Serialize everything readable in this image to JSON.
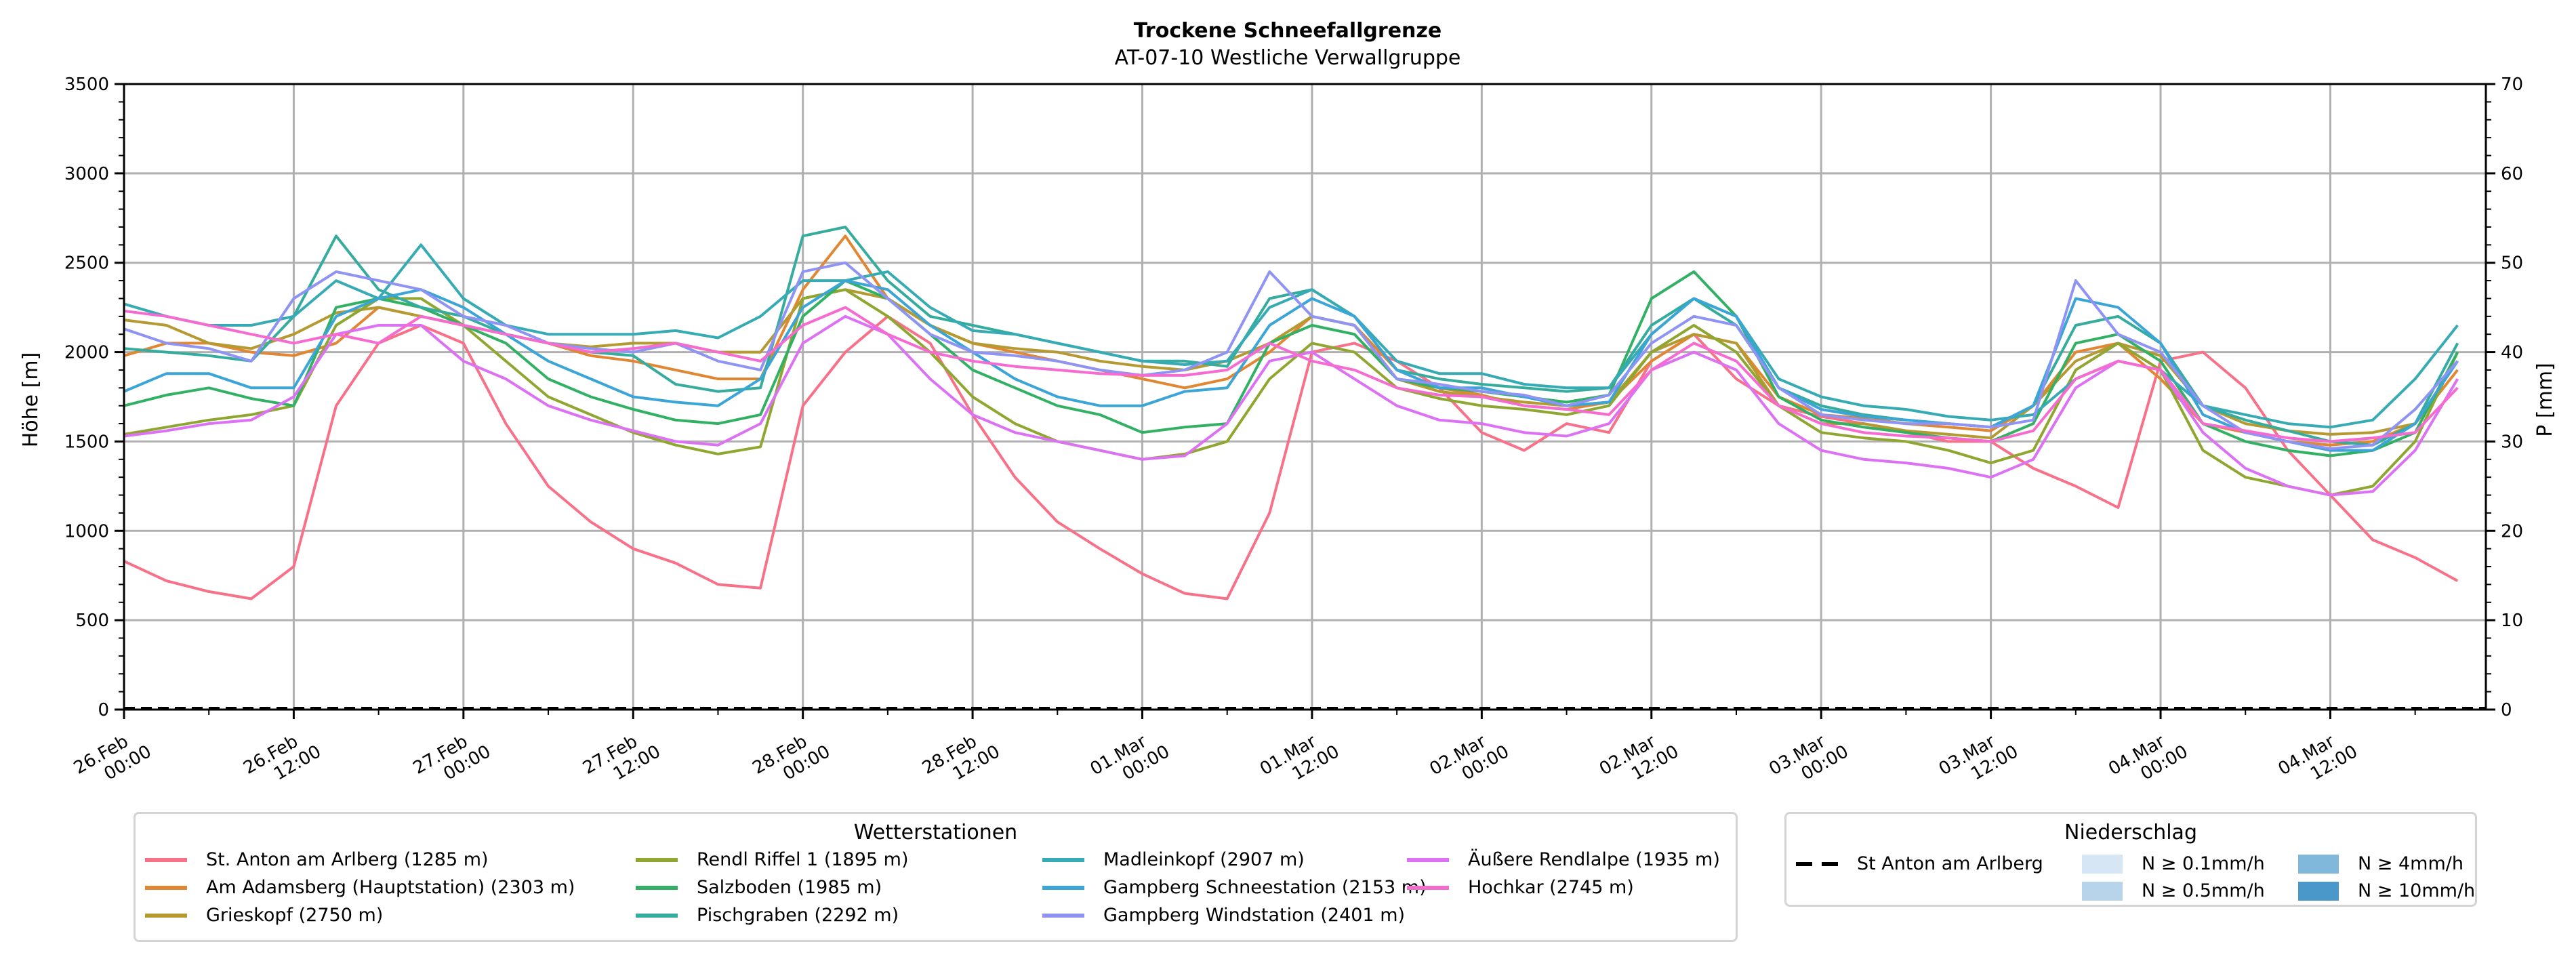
{
  "chart_data": {
    "type": "line",
    "title": "Trockene Schneefallgrenze",
    "subtitle": "AT-07-10 Westliche Verwallgruppe",
    "ylabel": "Höhe [m]",
    "ylabel_right": "P [mm]",
    "ylim": [
      0,
      3500
    ],
    "ylim_right": [
      0,
      70
    ],
    "yticks": [
      "0",
      "500",
      "1000",
      "1500",
      "2000",
      "2500",
      "3000",
      "3500"
    ],
    "yticks_right": [
      "0",
      "10",
      "20",
      "30",
      "40",
      "50",
      "60",
      "70"
    ],
    "x_unit": "hours since 26.Feb 00:00",
    "x_step_hours": 3,
    "xlim": [
      0,
      167
    ],
    "xticks": [
      {
        "line1": "26.Feb",
        "line2": "00:00"
      },
      {
        "line1": "26.Feb",
        "line2": "12:00"
      },
      {
        "line1": "27.Feb",
        "line2": "00:00"
      },
      {
        "line1": "27.Feb",
        "line2": "12:00"
      },
      {
        "line1": "28.Feb",
        "line2": "00:00"
      },
      {
        "line1": "28.Feb",
        "line2": "12:00"
      },
      {
        "line1": "01.Mar",
        "line2": "00:00"
      },
      {
        "line1": "01.Mar",
        "line2": "12:00"
      },
      {
        "line1": "02.Mar",
        "line2": "00:00"
      },
      {
        "line1": "02.Mar",
        "line2": "12:00"
      },
      {
        "line1": "03.Mar",
        "line2": "00:00"
      },
      {
        "line1": "03.Mar",
        "line2": "12:00"
      },
      {
        "line1": "04.Mar",
        "line2": "00:00"
      },
      {
        "line1": "04.Mar",
        "line2": "12:00"
      }
    ],
    "grid": true,
    "series": [
      {
        "name": "St. Anton am Arlberg (1285 m)",
        "color": "#f77189",
        "values": [
          830,
          720,
          660,
          620,
          800,
          1700,
          2050,
          2150,
          2050,
          1600,
          1250,
          1050,
          900,
          820,
          700,
          680,
          1700,
          2000,
          2200,
          2050,
          1650,
          1300,
          1050,
          900,
          760,
          650,
          620,
          1100,
          2000,
          2050,
          1950,
          1800,
          1550,
          1450,
          1600,
          1550,
          1950,
          2100,
          1850,
          1700,
          1640,
          1600,
          1550,
          1500,
          1500,
          1350,
          1250,
          1130,
          1950,
          2000,
          1800,
          1450,
          1200,
          950,
          850,
          720
        ]
      },
      {
        "name": "Am Adamsberg (Hauptstation) (2303 m)",
        "color": "#e18632",
        "values": [
          1980,
          2050,
          2050,
          2000,
          1980,
          2050,
          2250,
          2200,
          2150,
          2100,
          2050,
          1980,
          1950,
          1900,
          1850,
          1850,
          2350,
          2650,
          2300,
          2150,
          2050,
          2000,
          1950,
          1900,
          1850,
          1800,
          1850,
          2000,
          2200,
          2150,
          1900,
          1800,
          1760,
          1700,
          1680,
          1720,
          1950,
          2100,
          2050,
          1750,
          1650,
          1630,
          1600,
          1580,
          1560,
          1700,
          2000,
          2050,
          1850,
          1600,
          1550,
          1500,
          1480,
          1500,
          1600,
          1900
        ]
      },
      {
        "name": "Grieskopf (2750 m)",
        "color": "#b59a32",
        "values": [
          2180,
          2150,
          2050,
          2020,
          2100,
          2220,
          2250,
          2200,
          2150,
          2100,
          2050,
          2030,
          2050,
          2050,
          2000,
          2000,
          2300,
          2350,
          2300,
          2150,
          2050,
          2020,
          2000,
          1950,
          1920,
          1900,
          1950,
          2050,
          2200,
          2150,
          1850,
          1780,
          1750,
          1720,
          1700,
          1720,
          2000,
          2100,
          2050,
          1700,
          1600,
          1600,
          1560,
          1540,
          1520,
          1700,
          1950,
          2050,
          1980,
          1700,
          1600,
          1560,
          1540,
          1550,
          1600,
          1950
        ]
      },
      {
        "name": "Rendl Riffel 1 (1895 m)",
        "color": "#8fa631",
        "values": [
          1540,
          1580,
          1620,
          1650,
          1700,
          2150,
          2300,
          2300,
          2150,
          1950,
          1750,
          1650,
          1550,
          1480,
          1430,
          1470,
          2300,
          2350,
          2200,
          2000,
          1750,
          1600,
          1500,
          1450,
          1400,
          1430,
          1500,
          1850,
          2050,
          2000,
          1800,
          1740,
          1700,
          1680,
          1650,
          1700,
          2000,
          2150,
          2000,
          1700,
          1550,
          1520,
          1500,
          1450,
          1380,
          1450,
          1900,
          2050,
          1900,
          1450,
          1300,
          1250,
          1200,
          1250,
          1500,
          2000
        ]
      },
      {
        "name": "Salzboden (1985 m)",
        "color": "#32b165",
        "values": [
          1700,
          1760,
          1800,
          1740,
          1700,
          2250,
          2300,
          2250,
          2150,
          2050,
          1850,
          1750,
          1680,
          1620,
          1600,
          1650,
          2200,
          2400,
          2300,
          2100,
          1900,
          1800,
          1700,
          1650,
          1550,
          1580,
          1600,
          2050,
          2150,
          2100,
          1850,
          1800,
          1780,
          1750,
          1720,
          1760,
          2300,
          2450,
          2200,
          1750,
          1620,
          1580,
          1550,
          1520,
          1500,
          1600,
          2050,
          2100,
          1950,
          1600,
          1500,
          1450,
          1420,
          1450,
          1550,
          2000
        ]
      },
      {
        "name": "Pischgraben (2292 m)",
        "color": "#35ac9d",
        "values": [
          2020,
          2000,
          1980,
          1950,
          2200,
          2650,
          2350,
          2250,
          2200,
          2100,
          2050,
          2000,
          1980,
          1820,
          1780,
          1800,
          2650,
          2700,
          2400,
          2200,
          2150,
          2100,
          2050,
          2000,
          1950,
          1950,
          1920,
          2300,
          2350,
          2200,
          1900,
          1850,
          1820,
          1800,
          1780,
          1800,
          2150,
          2300,
          2150,
          1800,
          1700,
          1650,
          1620,
          1600,
          1580,
          1700,
          2150,
          2200,
          2050,
          1700,
          1620,
          1560,
          1500,
          1480,
          1600,
          2050
        ]
      },
      {
        "name": "Madleinkopf (2907 m)",
        "color": "#37abb4",
        "values": [
          2270,
          2200,
          2150,
          2150,
          2200,
          2400,
          2300,
          2600,
          2300,
          2150,
          2100,
          2100,
          2100,
          2120,
          2080,
          2200,
          2400,
          2400,
          2450,
          2250,
          2120,
          2100,
          2050,
          2000,
          1950,
          1930,
          1950,
          2250,
          2350,
          2200,
          1950,
          1880,
          1880,
          1820,
          1800,
          1800,
          2100,
          2300,
          2200,
          1850,
          1750,
          1700,
          1680,
          1640,
          1620,
          1650,
          1850,
          1950,
          1900,
          1700,
          1650,
          1600,
          1580,
          1620,
          1850,
          2150
        ]
      },
      {
        "name": "Gampberg Schneestation (2153 m)",
        "color": "#3aa5d6",
        "values": [
          1780,
          1880,
          1880,
          1800,
          1800,
          2200,
          2300,
          2350,
          2250,
          2100,
          1950,
          1850,
          1750,
          1720,
          1700,
          1850,
          2250,
          2400,
          2350,
          2150,
          2000,
          1850,
          1750,
          1700,
          1700,
          1780,
          1800,
          2150,
          2300,
          2200,
          1900,
          1800,
          1800,
          1750,
          1700,
          1720,
          2100,
          2300,
          2200,
          1800,
          1680,
          1640,
          1620,
          1600,
          1580,
          1700,
          2300,
          2250,
          2050,
          1650,
          1550,
          1500,
          1450,
          1450,
          1600,
          1950
        ]
      },
      {
        "name": "Gampberg Windstation (2401 m)",
        "color": "#8f93f4",
        "values": [
          2130,
          2050,
          2020,
          1950,
          2300,
          2450,
          2400,
          2350,
          2200,
          2150,
          2050,
          2020,
          2000,
          2050,
          1950,
          1900,
          2450,
          2500,
          2300,
          2100,
          2000,
          1980,
          1950,
          1900,
          1870,
          1900,
          2000,
          2450,
          2200,
          2150,
          1850,
          1820,
          1780,
          1760,
          1700,
          1760,
          2050,
          2200,
          2150,
          1800,
          1650,
          1620,
          1600,
          1600,
          1580,
          1620,
          2400,
          2100,
          2000,
          1700,
          1550,
          1500,
          1460,
          1480,
          1680,
          1950
        ]
      },
      {
        "name": "Äußere Rendlalpe (1935 m)",
        "color": "#dc71f3",
        "values": [
          1530,
          1560,
          1600,
          1620,
          1750,
          2100,
          2150,
          2150,
          1950,
          1850,
          1700,
          1620,
          1560,
          1500,
          1480,
          1600,
          2050,
          2200,
          2100,
          1850,
          1650,
          1550,
          1500,
          1450,
          1400,
          1420,
          1600,
          1950,
          2000,
          1850,
          1700,
          1620,
          1600,
          1550,
          1530,
          1600,
          1900,
          2000,
          1900,
          1600,
          1450,
          1400,
          1380,
          1350,
          1300,
          1400,
          1800,
          1950,
          1900,
          1550,
          1350,
          1250,
          1200,
          1220,
          1450,
          1850
        ]
      },
      {
        "name": "Hochkar (2745 m)",
        "color": "#f66bd0",
        "values": [
          2230,
          2200,
          2150,
          2100,
          2050,
          2100,
          2050,
          2200,
          2150,
          2100,
          2050,
          2000,
          2020,
          2050,
          2000,
          1950,
          2150,
          2250,
          2100,
          2000,
          1950,
          1920,
          1900,
          1880,
          1870,
          1870,
          1900,
          2050,
          1950,
          1900,
          1800,
          1760,
          1750,
          1700,
          1680,
          1650,
          1900,
          2050,
          1950,
          1700,
          1600,
          1550,
          1530,
          1520,
          1500,
          1560,
          1850,
          1950,
          1900,
          1600,
          1560,
          1520,
          1500,
          1520,
          1550,
          1800
        ]
      }
    ],
    "precip_line": {
      "name": "St Anton am Arlberg",
      "values_mm": [
        0
      ]
    },
    "legend_main": {
      "title": "Wetterstationen",
      "placement": "bottom-left"
    },
    "legend_precip": {
      "title": "Niederschlag",
      "placement": "bottom-right",
      "line_label": "St Anton am Arlberg",
      "classes": [
        {
          "label": "N ≥ 0.1mm/h",
          "color": "#d6e6f4"
        },
        {
          "label": "N ≥ 0.5mm/h",
          "color": "#b7d4ea"
        },
        {
          "label": "N ≥ 4mm/h",
          "color": "#7fb8da"
        },
        {
          "label": "N ≥ 10mm/h",
          "color": "#4a98c9"
        }
      ]
    }
  }
}
